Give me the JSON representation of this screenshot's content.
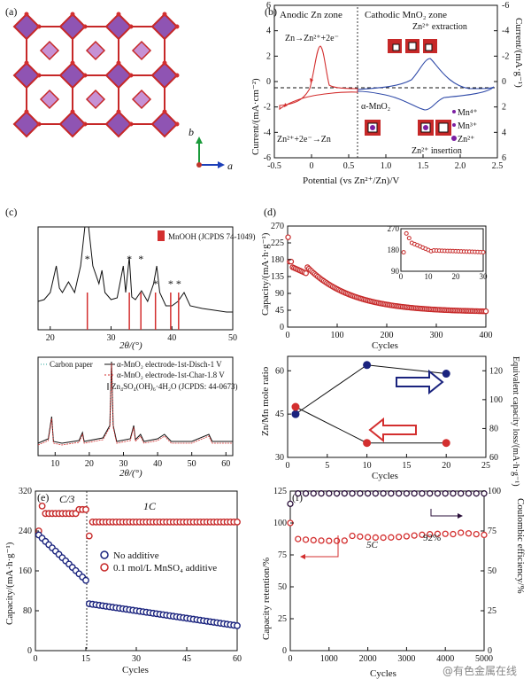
{
  "panels": {
    "a": {
      "label": "(a)",
      "axis_b": "b",
      "axis_a": "a"
    },
    "b": {
      "label": "(b)",
      "zone_left": "Anodic Zn zone",
      "zone_right": "Cathodic MnO₂ zone",
      "eq_top": "Zn→Zn²⁺+2e⁻",
      "eq_bottom": "Zn²⁺+2e⁻→Zn",
      "extraction": "Zn²⁺ extraction",
      "insertion": "Zn²⁺ insertion",
      "alpha": "α-MnO₂",
      "legend": [
        "Mn⁴⁺",
        "Mn³⁺",
        "Zn²⁺"
      ],
      "ylabel_left": "Current/(mA·cm⁻²)",
      "ylabel_right": "Current/(mA·g⁻¹)",
      "xlabel": "Potential (vs Zn²⁺/Zn)/V"
    },
    "c": {
      "label": "(c)",
      "legend_top": "MnOOH (JCPDS 74-1049)",
      "legend_bottom": [
        "Carbon paper",
        "α-MnO₂ electrode-1st-Disch-1 V",
        "α-MnO₂ electrode-1st-Char-1.8 V",
        "Zn₄SO₄(OH)₆·4H₂O (JCPDS: 44-0673)"
      ],
      "xlabel": "2θ/(°)"
    },
    "d": {
      "label": "(d)",
      "ylabel_top": "Capacity/(mA·h·g⁻¹)",
      "xlabel_top": "Cycles",
      "ylabel_bottom_left": "Zn/Mn mole ratio",
      "ylabel_bottom_right": "Equivalent capacity loss/(mA·h·g⁻¹)",
      "xlabel_bottom": "Cycles"
    },
    "e": {
      "label": "(e)",
      "rate1": "C/3",
      "rate2": "1C",
      "legend": [
        "No additive",
        "0.1 mol/L MnSO₄ additive"
      ],
      "ylabel": "Capacity/(mA·h·g⁻¹)",
      "xlabel": "Cycles"
    },
    "f": {
      "label": "(f)",
      "rate": "5C",
      "retention_end": "92%",
      "ylabel_left": "Capacity retention/%",
      "ylabel_right": "Coulombic efficiency/%",
      "xlabel": "Cycles"
    }
  },
  "watermark": "@有色金属在线",
  "chart_data": [
    {
      "type": "line",
      "title": "",
      "xlabel": "Potential (vs Zn²⁺/Zn)/V",
      "ylabel": "Current/(mA·cm⁻²)",
      "xlim": [
        -0.5,
        2.5
      ],
      "ylim": [
        -6,
        6
      ],
      "x_ticks": [
        "-0.5",
        "0",
        "0.5",
        "1.0",
        "1.5",
        "2.0",
        "2.5"
      ],
      "y_ticks": [
        "-6",
        "-4",
        "-2",
        "0",
        "2",
        "4",
        "6"
      ],
      "y2_ticks": [
        "6",
        "4",
        "2",
        "0",
        "-2",
        "-4",
        "-6"
      ]
    },
    {
      "type": "line",
      "xlabel": "2θ/(°)",
      "x_ticks_top": [
        "20",
        "30",
        "40",
        "50"
      ],
      "x_ticks_bottom": [
        "10",
        "20",
        "30",
        "40",
        "50",
        "60"
      ],
      "mnooh_peaks": [
        26.1,
        33.0,
        34.9,
        37.3,
        39.8,
        41.1
      ]
    },
    {
      "type": "scatter",
      "xlabel": "Cycles",
      "ylabel": "Capacity/(mA·h·g⁻¹)",
      "xlim": [
        0,
        400
      ],
      "ylim": [
        0,
        270
      ],
      "x_ticks": [
        "0",
        "100",
        "200",
        "300",
        "400"
      ],
      "y_ticks": [
        "0",
        "45",
        "90",
        "135",
        "180",
        "225",
        "270"
      ],
      "inset": {
        "xlim": [
          0,
          30
        ],
        "ylim": [
          90,
          270
        ],
        "x_ticks": [
          "0",
          "10",
          "20",
          "30"
        ],
        "y_ticks": [
          "90",
          "180",
          "270"
        ]
      }
    },
    {
      "type": "scatter",
      "xlabel": "Cycles",
      "ylabel": "Zn/Mn mole ratio",
      "y2label": "Equivalent capacity loss/(mA·h·g⁻¹)",
      "xlim": [
        0,
        25
      ],
      "ylim": [
        30,
        65
      ],
      "y2lim": [
        60,
        130
      ],
      "x_ticks": [
        "0",
        "5",
        "10",
        "15",
        "20",
        "25"
      ],
      "y_ticks": [
        "30",
        "45",
        "60"
      ],
      "y2_ticks": [
        "60",
        "80",
        "100",
        "120"
      ],
      "series": [
        {
          "axis": "left",
          "x": [
            1,
            10,
            20
          ],
          "values": [
            45,
            62,
            59
          ]
        },
        {
          "axis": "right",
          "x": [
            1,
            10,
            20
          ],
          "values": [
            95,
            70,
            70
          ]
        }
      ]
    },
    {
      "type": "scatter",
      "xlabel": "Cycles",
      "ylabel": "Capacity/(mA·h·g⁻¹)",
      "xlim": [
        0,
        60
      ],
      "ylim": [
        0,
        320
      ],
      "x_ticks": [
        "0",
        "15",
        "30",
        "45",
        "60"
      ],
      "y_ticks": [
        "0",
        "80",
        "160",
        "240",
        "320"
      ],
      "series": [
        {
          "name": "No additive",
          "color": "#1a237e"
        },
        {
          "name": "0.1 mol/L MnSO₄ additive",
          "color": "#c62828"
        }
      ]
    },
    {
      "type": "scatter",
      "xlabel": "Cycles",
      "ylabel": "Capacity retention/%",
      "y2label": "Coulombic efficiency/%",
      "xlim": [
        0,
        5000
      ],
      "ylim": [
        0,
        125
      ],
      "y2lim": [
        0,
        100
      ],
      "x_ticks": [
        "0",
        "1000",
        "2000",
        "3000",
        "4000",
        "5000"
      ],
      "y_ticks": [
        "0",
        "25",
        "50",
        "75",
        "100",
        "125"
      ],
      "y2_ticks": [
        "0",
        "25",
        "50",
        "75",
        "100"
      ]
    }
  ]
}
